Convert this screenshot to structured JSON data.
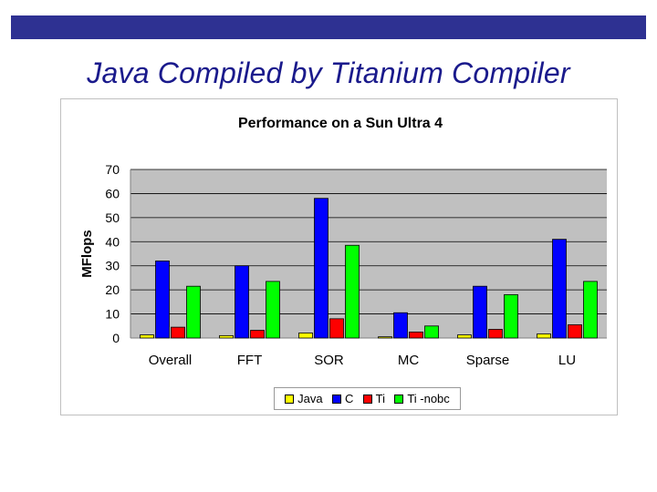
{
  "slide": {
    "title": "Java Compiled by Titanium Compiler",
    "bar_color": "#2e3192",
    "title_color": "#1a1a8c"
  },
  "chart_data": {
    "type": "bar",
    "title": "Performance on a Sun Ultra 4",
    "xlabel": "",
    "ylabel": "MFlops",
    "ylim": [
      0,
      70
    ],
    "yticks": [
      0,
      10,
      20,
      30,
      40,
      50,
      60,
      70
    ],
    "grid": true,
    "plot_background": "#c0c0c0",
    "legend_position": "bottom",
    "categories": [
      "Overall",
      "FFT",
      "SOR",
      "MC",
      "Sparse",
      "LU"
    ],
    "series": [
      {
        "name": "Java",
        "color": "#ffff00",
        "values": [
          1.3,
          1.0,
          2.1,
          0.5,
          1.3,
          1.7
        ]
      },
      {
        "name": "C",
        "color": "#0000ff",
        "values": [
          32,
          30,
          58,
          10.5,
          21.5,
          41
        ]
      },
      {
        "name": "Ti",
        "color": "#ff0000",
        "values": [
          4.5,
          3.2,
          8.0,
          2.5,
          3.6,
          5.5
        ]
      },
      {
        "name": "Ti -nobc",
        "color": "#00ff00",
        "values": [
          21.5,
          23.5,
          38.5,
          5.0,
          18.0,
          23.5
        ]
      }
    ]
  }
}
